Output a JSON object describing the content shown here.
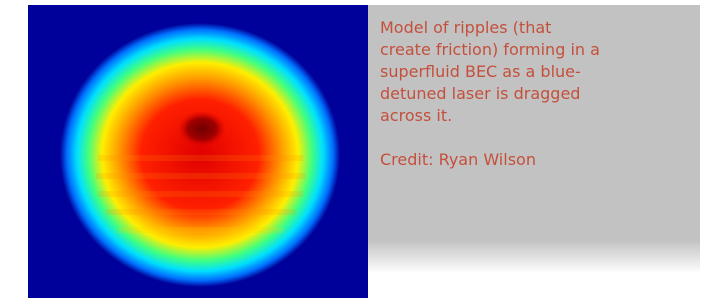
{
  "caption": {
    "lines": [
      "Model of ripples (that",
      "create friction) forming in a",
      "superfluid BEC as a blue-",
      "detuned laser is dragged",
      "across it."
    ],
    "credit": "Credit: Ryan Wilson"
  }
}
